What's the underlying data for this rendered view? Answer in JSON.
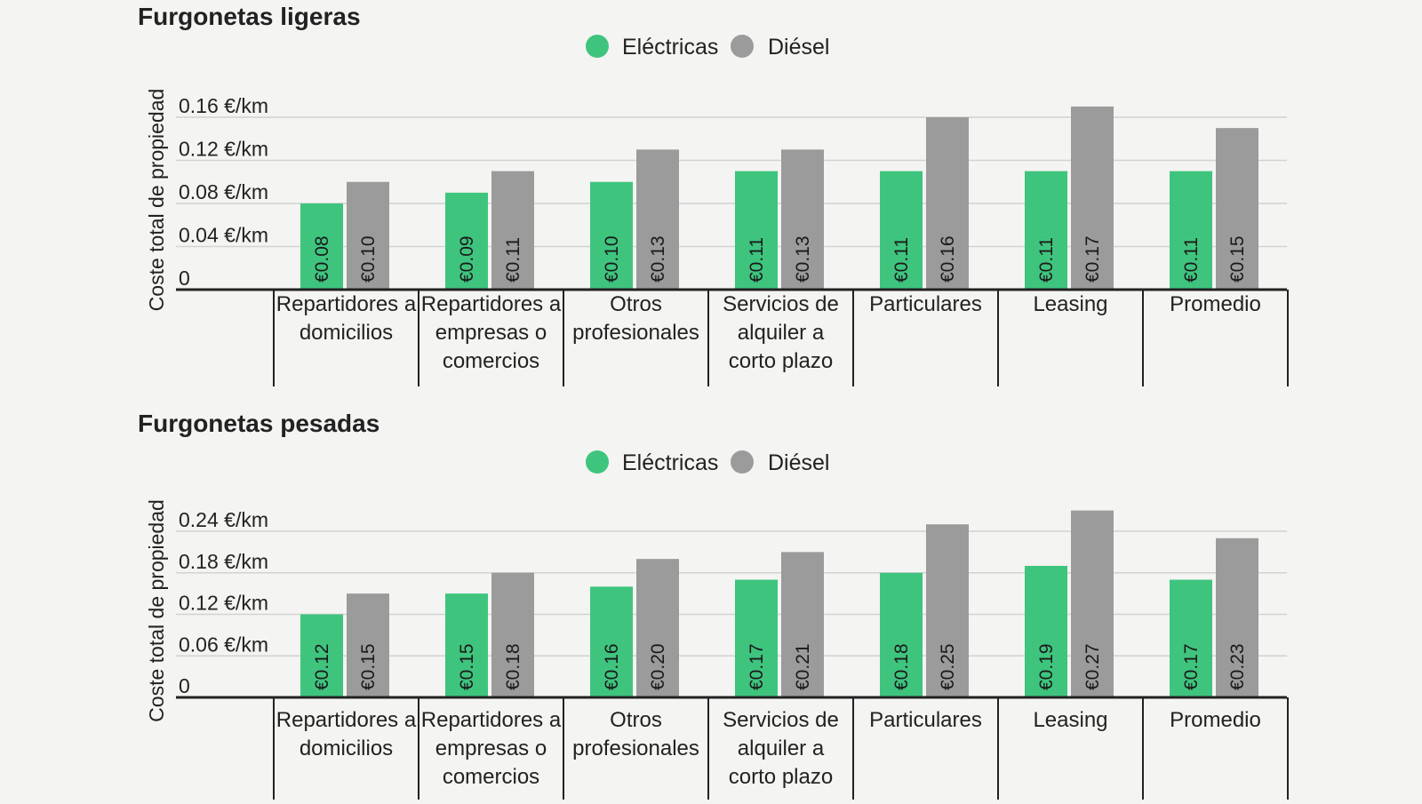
{
  "colors": {
    "electric": "#3fc47e",
    "diesel": "#9b9b9b",
    "gridline": "#d2d2d0",
    "axis": "#222222",
    "text": "#222222",
    "background": "#f4f4f2"
  },
  "chart_data": [
    {
      "type": "bar",
      "title": "Furgonetas ligeras",
      "ylabel": "Coste total de propiedad",
      "xlabel": "",
      "legend": {
        "position": "top-center",
        "entries": [
          "Eléctricas",
          "Diésel"
        ]
      },
      "grid": true,
      "ylim": [
        0,
        0.16
      ],
      "yticks": [
        0,
        0.04,
        0.08,
        0.12,
        0.16
      ],
      "ytick_labels": [
        "0",
        "0.04 €/km",
        "0.08 €/km",
        "0.12 €/km",
        "0.16 €/km"
      ],
      "categories": [
        [
          "Repartidores a",
          "domicilios"
        ],
        [
          "Repartidores a",
          "empresas o",
          "comercios"
        ],
        [
          "Otros",
          "profesionales"
        ],
        [
          "Servicios de",
          "alquiler a",
          "corto plazo"
        ],
        [
          "Particulares"
        ],
        [
          "Leasing"
        ],
        [
          "Promedio"
        ]
      ],
      "series": [
        {
          "name": "Eléctricas",
          "values": [
            0.08,
            0.09,
            0.1,
            0.11,
            0.11,
            0.11,
            0.11
          ],
          "labels": [
            "€0.08",
            "€0.09",
            "€0.10",
            "€0.11",
            "€0.11",
            "€0.11",
            "€0.11"
          ]
        },
        {
          "name": "Diésel",
          "values": [
            0.1,
            0.11,
            0.13,
            0.13,
            0.16,
            0.17,
            0.15
          ],
          "labels": [
            "€0.10",
            "€0.11",
            "€0.13",
            "€0.13",
            "€0.16",
            "€0.17",
            "€0.15"
          ]
        }
      ]
    },
    {
      "type": "bar",
      "title": "Furgonetas pesadas",
      "ylabel": "Coste total de propiedad",
      "xlabel": "",
      "legend": {
        "position": "top-center",
        "entries": [
          "Eléctricas",
          "Diésel"
        ]
      },
      "grid": true,
      "ylim": [
        0,
        0.24
      ],
      "yticks": [
        0,
        0.06,
        0.12,
        0.18,
        0.24
      ],
      "ytick_labels": [
        "0",
        "0.06 €/km",
        "0.12 €/km",
        "0.18 €/km",
        "0.24 €/km"
      ],
      "categories": [
        [
          "Repartidores a",
          "domicilios"
        ],
        [
          "Repartidores a",
          "empresas o",
          "comercios"
        ],
        [
          "Otros",
          "profesionales"
        ],
        [
          "Servicios de",
          "alquiler a",
          "corto plazo"
        ],
        [
          "Particulares"
        ],
        [
          "Leasing"
        ],
        [
          "Promedio"
        ]
      ],
      "series": [
        {
          "name": "Eléctricas",
          "values": [
            0.12,
            0.15,
            0.16,
            0.17,
            0.18,
            0.19,
            0.17
          ],
          "labels": [
            "€0.12",
            "€0.15",
            "€0.16",
            "€0.17",
            "€0.18",
            "€0.19",
            "€0.17"
          ]
        },
        {
          "name": "Diésel",
          "values": [
            0.15,
            0.18,
            0.2,
            0.21,
            0.25,
            0.27,
            0.23
          ],
          "labels": [
            "€0.15",
            "€0.18",
            "€0.20",
            "€0.21",
            "€0.25",
            "€0.27",
            "€0.23"
          ]
        }
      ]
    }
  ]
}
